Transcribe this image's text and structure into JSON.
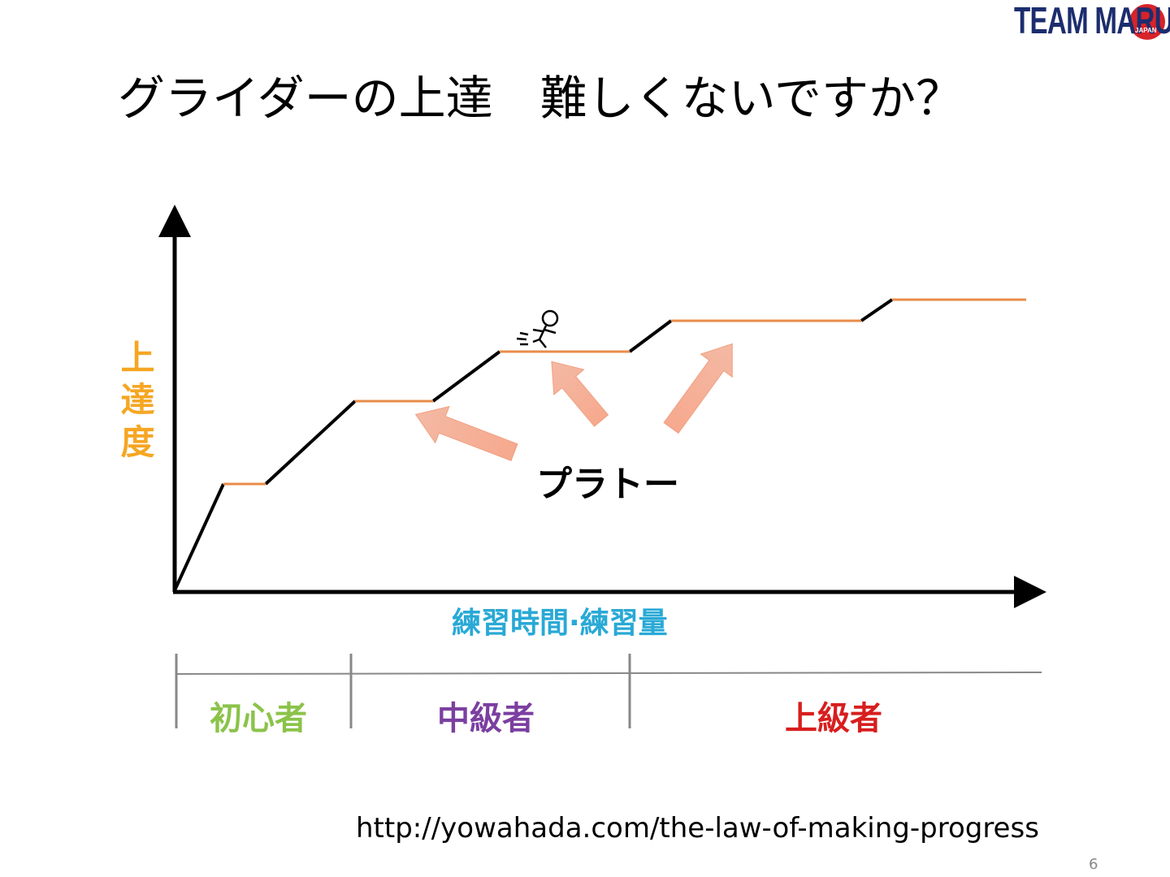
{
  "logo": {
    "text": "TEAM MARU",
    "badge": "JAPAN"
  },
  "title": "グライダーの上達　難しくないですか？",
  "diagram": {
    "y_axis_label": "上達度",
    "x_axis_label": "練習時間·練習量",
    "plateau_label": "プラトー",
    "levels": [
      "初心者",
      "中級者",
      "上級者"
    ]
  },
  "source_url": "http://yowahada.com/the-law-of-making-progress",
  "page_number": "6"
}
